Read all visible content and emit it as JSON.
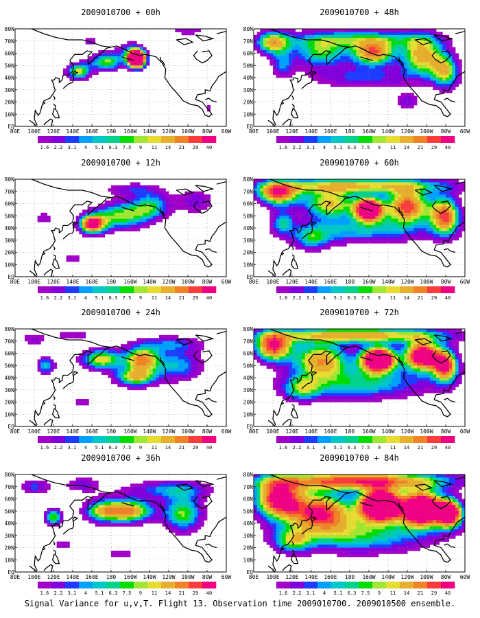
{
  "caption": "Signal Variance for u,v,T. Flight 13. Observation time 2009010700. 2009010500 ensemble.",
  "x_ticks": [
    "80E",
    "100E",
    "120E",
    "140E",
    "160E",
    "180",
    "160W",
    "140W",
    "120W",
    "100W",
    "80W",
    "60W"
  ],
  "y_ticks": [
    "EQ",
    "10N",
    "20N",
    "30N",
    "40N",
    "50N",
    "60N",
    "70N",
    "80N"
  ],
  "colorbar": {
    "levels": [
      "1.6",
      "2.2",
      "3.1",
      "4",
      "5.1",
      "6.3",
      "7.5",
      "9",
      "11",
      "14",
      "21",
      "29",
      "40"
    ],
    "colors": [
      "#a000c8",
      "#8200dc",
      "#1e3cff",
      "#00a0ff",
      "#00c8c8",
      "#00d28c",
      "#00dc00",
      "#a0e632",
      "#e6dc32",
      "#e6af2d",
      "#f08228",
      "#fa3c3c",
      "#f00082"
    ]
  },
  "chart_data": [
    {
      "type": "heatmap",
      "title": "2009010700 + 00h",
      "lead_hours": 0,
      "xlim": [
        80,
        300
      ],
      "ylim": [
        0,
        80
      ],
      "blobs": [
        [
          146,
          45,
          13,
          7,
          2.2
        ],
        [
          175,
          53,
          18,
          8,
          2.0
        ],
        [
          207,
          55,
          9,
          7,
          5.5
        ],
        [
          205,
          55,
          4,
          3,
          8.0
        ],
        [
          200,
          62,
          15,
          8,
          1.2
        ],
        [
          158,
          70,
          10,
          5,
          0.9
        ],
        [
          282,
          15,
          5,
          5,
          0.8
        ],
        [
          260,
          78,
          25,
          4,
          0.8
        ]
      ]
    },
    {
      "type": "heatmap",
      "title": "2009010700 + 12h",
      "lead_hours": 12,
      "xlim": [
        80,
        300
      ],
      "ylim": [
        0,
        80
      ],
      "blobs": [
        [
          160,
          43,
          14,
          8,
          3.2
        ],
        [
          190,
          50,
          28,
          12,
          2.0
        ],
        [
          222,
          58,
          20,
          12,
          1.6
        ],
        [
          268,
          62,
          22,
          12,
          1.0
        ],
        [
          110,
          48,
          12,
          7,
          0.8
        ],
        [
          140,
          15,
          14,
          5,
          0.8
        ],
        [
          200,
          72,
          30,
          6,
          0.9
        ]
      ]
    },
    {
      "type": "heatmap",
      "title": "2009010700 + 24h",
      "lead_hours": 24,
      "xlim": [
        80,
        300
      ],
      "ylim": [
        0,
        80
      ],
      "blobs": [
        [
          112,
          50,
          10,
          8,
          1.6
        ],
        [
          170,
          55,
          22,
          9,
          2.3
        ],
        [
          205,
          40,
          22,
          8,
          2.2
        ],
        [
          212,
          55,
          18,
          10,
          2.5
        ],
        [
          250,
          50,
          28,
          14,
          1.5
        ],
        [
          240,
          68,
          40,
          7,
          1.1
        ],
        [
          100,
          72,
          15,
          6,
          0.9
        ],
        [
          140,
          75,
          20,
          5,
          0.9
        ],
        [
          150,
          20,
          15,
          5,
          0.8
        ]
      ]
    },
    {
      "type": "heatmap",
      "title": "2009010700 + 36h",
      "lead_hours": 36,
      "xlim": [
        80,
        300
      ],
      "ylim": [
        0,
        80
      ],
      "blobs": [
        [
          120,
          45,
          10,
          8,
          2.0
        ],
        [
          170,
          50,
          20,
          10,
          2.0
        ],
        [
          200,
          50,
          24,
          10,
          2.6
        ],
        [
          255,
          48,
          22,
          16,
          2.0
        ],
        [
          240,
          68,
          50,
          8,
          1.3
        ],
        [
          100,
          70,
          18,
          7,
          1.2
        ],
        [
          150,
          72,
          20,
          7,
          1.0
        ],
        [
          130,
          22,
          14,
          6,
          0.8
        ],
        [
          190,
          15,
          20,
          5,
          0.8
        ]
      ]
    },
    {
      "type": "heatmap",
      "title": "2009010700 + 48h",
      "lead_hours": 48,
      "xlim": [
        80,
        300
      ],
      "ylim": [
        0,
        80
      ],
      "blobs": [
        [
          100,
          68,
          18,
          10,
          2.2
        ],
        [
          150,
          60,
          30,
          12,
          1.8
        ],
        [
          205,
          60,
          22,
          10,
          2.7
        ],
        [
          255,
          58,
          22,
          16,
          2.4
        ],
        [
          280,
          45,
          15,
          15,
          2.0
        ],
        [
          190,
          72,
          80,
          8,
          1.6
        ],
        [
          195,
          40,
          60,
          10,
          1.2
        ],
        [
          110,
          50,
          12,
          10,
          1.2
        ],
        [
          240,
          20,
          15,
          8,
          1.0
        ]
      ]
    },
    {
      "type": "heatmap",
      "title": "2009010700 + 60h",
      "lead_hours": 60,
      "xlim": [
        80,
        300
      ],
      "ylim": [
        0,
        80
      ],
      "blobs": [
        [
          105,
          68,
          22,
          10,
          2.8
        ],
        [
          160,
          60,
          30,
          12,
          2.3
        ],
        [
          200,
          55,
          14,
          9,
          4.2
        ],
        [
          240,
          58,
          24,
          14,
          3.0
        ],
        [
          280,
          50,
          16,
          16,
          2.8
        ],
        [
          190,
          75,
          100,
          7,
          2.2
        ],
        [
          190,
          38,
          80,
          12,
          1.5
        ],
        [
          140,
          30,
          20,
          10,
          1.2
        ],
        [
          110,
          45,
          12,
          10,
          1.3
        ]
      ]
    },
    {
      "type": "heatmap",
      "title": "2009010700 + 72h",
      "lead_hours": 72,
      "xlim": [
        80,
        300
      ],
      "ylim": [
        0,
        80
      ],
      "blobs": [
        [
          100,
          65,
          20,
          12,
          3.0
        ],
        [
          150,
          55,
          30,
          14,
          2.5
        ],
        [
          210,
          55,
          18,
          10,
          4.7
        ],
        [
          255,
          58,
          18,
          12,
          3.8
        ],
        [
          280,
          50,
          14,
          14,
          3.0
        ],
        [
          190,
          75,
          100,
          7,
          2.5
        ],
        [
          190,
          35,
          80,
          14,
          1.7
        ],
        [
          130,
          30,
          20,
          10,
          1.3
        ]
      ]
    },
    {
      "type": "heatmap",
      "title": "2009010700 + 84h",
      "lead_hours": 84,
      "xlim": [
        80,
        300
      ],
      "ylim": [
        0,
        80
      ],
      "blobs": [
        [
          105,
          60,
          25,
          16,
          3.2
        ],
        [
          150,
          50,
          35,
          16,
          2.9
        ],
        [
          212,
          55,
          20,
          12,
          5.6
        ],
        [
          255,
          52,
          22,
          14,
          4.8
        ],
        [
          285,
          48,
          14,
          12,
          3.5
        ],
        [
          190,
          75,
          100,
          8,
          3.0
        ],
        [
          190,
          30,
          80,
          16,
          1.8
        ],
        [
          120,
          25,
          20,
          10,
          1.4
        ]
      ]
    }
  ]
}
